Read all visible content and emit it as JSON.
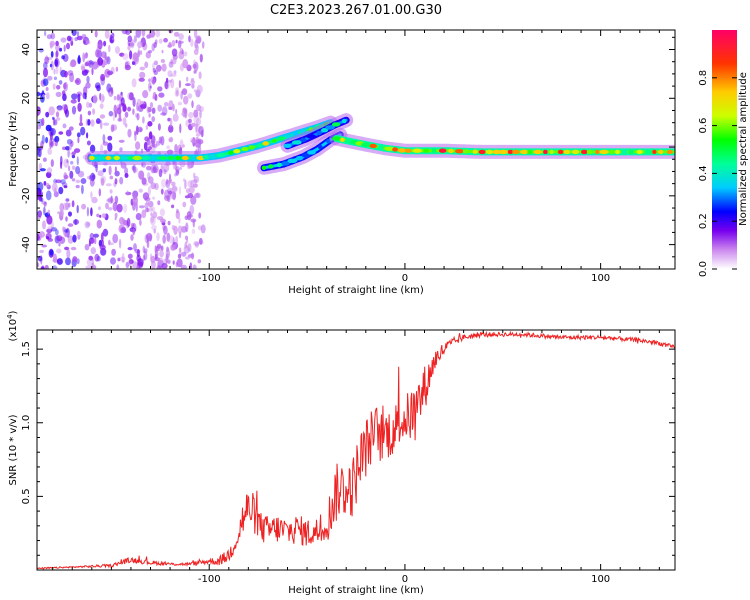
{
  "title": "C2E3.2023.267.01.00.G30",
  "chart_data": [
    {
      "type": "heatmap",
      "xlabel": "Height of straight line (km)",
      "ylabel": "Frequency (Hz)",
      "xlim": [
        -188,
        138
      ],
      "ylim": [
        -50,
        48
      ],
      "xticks": [
        -100,
        0,
        100
      ],
      "yticks": [
        -40,
        -20,
        0,
        20,
        40
      ],
      "colorbar": {
        "label": "Normalized spectral amplitude",
        "range": [
          0,
          1
        ],
        "ticks": [
          0.0,
          0.2,
          0.4,
          0.6,
          0.8
        ],
        "colors": [
          "#ffffff",
          "#cc88ee",
          "#7700ee",
          "#0000ff",
          "#00ccff",
          "#00ff88",
          "#00ff00",
          "#ccff00",
          "#ffcc00",
          "#ff3300",
          "#ff0066"
        ]
      },
      "ridges": [
        {
          "x": [
            -160,
            -130,
            -105,
            -95,
            -85,
            -75,
            -65,
            -55,
            -45,
            -38
          ],
          "y": [
            -4.5,
            -4.5,
            -4.5,
            -3.5,
            -1.5,
            0.5,
            3,
            5.5,
            8,
            10
          ],
          "amplitude": 0.75
        },
        {
          "x": [
            -72,
            -62,
            -52,
            -45,
            -38,
            -33
          ],
          "y": [
            -8.5,
            -7,
            -4,
            -1,
            3,
            5
          ],
          "amplitude": 0.55
        },
        {
          "x": [
            -60,
            -50,
            -42,
            -36,
            -30
          ],
          "y": [
            0.5,
            3.5,
            6.5,
            9,
            11
          ],
          "amplitude": 0.5
        },
        {
          "x": [
            -35,
            -20,
            -10,
            0,
            20,
            40,
            60,
            80,
            100,
            120,
            138
          ],
          "y": [
            3.5,
            1,
            -0.5,
            -1.5,
            -1.5,
            -2,
            -2,
            -2,
            -2,
            -2,
            -2
          ],
          "amplitude": 0.95
        }
      ]
    },
    {
      "type": "line",
      "xlabel": "Height of straight line (km)",
      "ylabel": "SNR (10 * v/v)",
      "y_multiplier": "(x10",
      "y_multiplier_exp": "4",
      "y_multiplier_close": ")",
      "xlim": [
        -188,
        138
      ],
      "ylim": [
        0.0,
        1.63
      ],
      "xticks": [
        -100,
        0,
        100
      ],
      "yticks": [
        0.5,
        1.0,
        1.5
      ],
      "color": "#ee2222",
      "series": [
        {
          "x": [
            -188,
            -170,
            -150,
            -140,
            -130,
            -120,
            -110,
            -100,
            -95,
            -90,
            -85,
            -82,
            -79,
            -76,
            -73,
            -70,
            -65,
            -60,
            -55,
            -50,
            -45,
            -42,
            -39,
            -36,
            -33,
            -30,
            -27,
            -24,
            -21,
            -18,
            -15,
            -12,
            -9,
            -6,
            -3,
            0,
            3,
            6,
            9,
            12,
            15,
            20,
            25,
            30,
            40,
            50,
            60,
            70,
            80,
            90,
            100,
            110,
            120,
            130,
            138
          ],
          "y": [
            0.01,
            0.02,
            0.03,
            0.07,
            0.05,
            0.04,
            0.04,
            0.06,
            0.06,
            0.1,
            0.25,
            0.38,
            0.42,
            0.35,
            0.28,
            0.27,
            0.28,
            0.26,
            0.28,
            0.25,
            0.26,
            0.28,
            0.35,
            0.5,
            0.56,
            0.55,
            0.55,
            0.7,
            0.8,
            0.88,
            0.95,
            0.9,
            0.93,
            0.95,
            1.0,
            1.03,
            1.05,
            1.1,
            1.2,
            1.3,
            1.42,
            1.5,
            1.55,
            1.58,
            1.6,
            1.6,
            1.6,
            1.59,
            1.58,
            1.58,
            1.58,
            1.57,
            1.56,
            1.54,
            1.51
          ],
          "noise": [
            0.005,
            0.005,
            0.01,
            0.02,
            0.015,
            0.01,
            0.01,
            0.02,
            0.03,
            0.05,
            0.1,
            0.15,
            0.15,
            0.12,
            0.1,
            0.1,
            0.1,
            0.1,
            0.1,
            0.1,
            0.1,
            0.1,
            0.15,
            0.2,
            0.2,
            0.2,
            0.2,
            0.22,
            0.2,
            0.2,
            0.18,
            0.18,
            0.18,
            0.18,
            0.16,
            0.16,
            0.18,
            0.2,
            0.18,
            0.12,
            0.08,
            0.05,
            0.03,
            0.02,
            0.015,
            0.015,
            0.015,
            0.015,
            0.015,
            0.015,
            0.015,
            0.015,
            0.015,
            0.015,
            0.015
          ]
        }
      ]
    }
  ]
}
